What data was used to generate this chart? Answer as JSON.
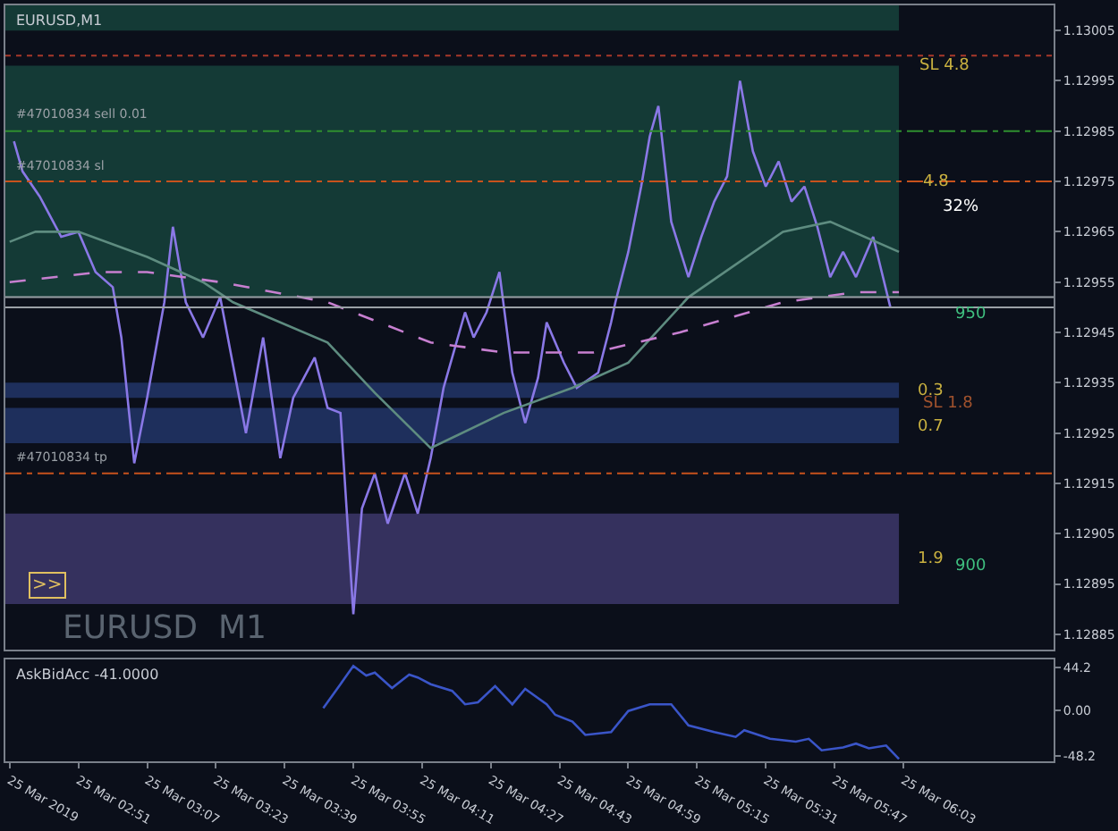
{
  "chart_data": [
    {
      "type": "line",
      "title": "EURUSD,M1",
      "xlim": [
        "2019-03-25T02:34",
        "2019-03-25T06:38"
      ],
      "ylim": [
        1.12882,
        1.1301
      ],
      "yticks": [
        1.12885,
        1.12895,
        1.12905,
        1.12915,
        1.12925,
        1.12935,
        1.12945,
        1.12955,
        1.12965,
        1.12975,
        1.12985,
        1.12995,
        1.13005
      ],
      "tick_labels": "y",
      "grid": false,
      "marker": "none",
      "series": [
        {
          "color": "#8a78e6",
          "line_style": "solid",
          "x": [
            "2019-03-25T02:36",
            "2019-03-25T02:38",
            "2019-03-25T02:42",
            "2019-03-25T02:47",
            "2019-03-25T02:51",
            "2019-03-25T02:53",
            "2019-03-25T02:55",
            "2019-03-25T02:59",
            "2019-03-25T03:01",
            "2019-03-25T03:04",
            "2019-03-25T03:07",
            "2019-03-25T03:11",
            "2019-03-25T03:13",
            "2019-03-25T03:16",
            "2019-03-25T03:20",
            "2019-03-25T03:24",
            "2019-03-25T03:28",
            "2019-03-25T03:30",
            "2019-03-25T03:34",
            "2019-03-25T03:38",
            "2019-03-25T03:41",
            "2019-03-25T03:46",
            "2019-03-25T03:49",
            "2019-03-25T03:52",
            "2019-03-25T03:55",
            "2019-03-25T03:57",
            "2019-03-25T04:00",
            "2019-03-25T04:03",
            "2019-03-25T04:07",
            "2019-03-25T04:10",
            "2019-03-25T04:13",
            "2019-03-25T04:16",
            "2019-03-25T04:18",
            "2019-03-25T04:21",
            "2019-03-25T04:23",
            "2019-03-25T04:26",
            "2019-03-25T04:29",
            "2019-03-25T04:32",
            "2019-03-25T04:35",
            "2019-03-25T04:38",
            "2019-03-25T04:40",
            "2019-03-25T04:44",
            "2019-03-25T04:47",
            "2019-03-25T04:52",
            "2019-03-25T04:55",
            "2019-03-25T04:56",
            "2019-03-25T04:59",
            "2019-03-25T05:02",
            "2019-03-25T05:04",
            "2019-03-25T05:06",
            "2019-03-25T05:09",
            "2019-03-25T05:13",
            "2019-03-25T05:16",
            "2019-03-25T05:19",
            "2019-03-25T05:22",
            "2019-03-25T05:25",
            "2019-03-25T05:28",
            "2019-03-25T05:31",
            "2019-03-25T05:34",
            "2019-03-25T05:37",
            "2019-03-25T05:40",
            "2019-03-25T05:43",
            "2019-03-25T05:46",
            "2019-03-25T05:49",
            "2019-03-25T05:52",
            "2019-03-25T05:56",
            "2019-03-25T05:58",
            "2019-03-25T06:00"
          ],
          "values": [
            1.12983,
            1.12977,
            1.12972,
            1.12964,
            1.12965,
            1.12961,
            1.12957,
            1.12954,
            1.12944,
            1.12919,
            1.12932,
            1.12951,
            1.12966,
            1.12951,
            1.12944,
            1.12952,
            1.12934,
            1.12925,
            1.12944,
            1.1292,
            1.12932,
            1.1294,
            1.1293,
            1.12929,
            1.12889,
            1.1291,
            1.12917,
            1.12907,
            1.12917,
            1.12909,
            1.1292,
            1.12934,
            1.1294,
            1.12949,
            1.12944,
            1.12949,
            1.12957,
            1.12937,
            1.12927,
            1.12936,
            1.12947,
            1.12939,
            1.12934,
            1.12937,
            1.12947,
            1.12951,
            1.12961,
            1.12974,
            1.12984,
            1.1299,
            1.12967,
            1.12956,
            1.12964,
            1.12971,
            1.12976,
            1.12995,
            1.12981,
            1.12974,
            1.12979,
            1.12971,
            1.12974,
            1.12966,
            1.12956,
            1.12961,
            1.12956,
            1.12964,
            1.12957,
            1.1295
          ]
        },
        {
          "color": "#5e8c80",
          "line_style": "solid",
          "x": [
            "2019-03-25T02:35",
            "2019-03-25T02:41",
            "2019-03-25T02:51",
            "2019-03-25T03:07",
            "2019-03-25T03:20",
            "2019-03-25T03:27",
            "2019-03-25T03:49",
            "2019-03-25T04:00",
            "2019-03-25T04:13",
            "2019-03-25T04:30",
            "2019-03-25T04:46",
            "2019-03-25T04:59",
            "2019-03-25T05:13",
            "2019-03-25T05:35",
            "2019-03-25T05:46",
            "2019-03-25T06:02"
          ],
          "values": [
            1.12963,
            1.12965,
            1.12965,
            1.1296,
            1.12955,
            1.12951,
            1.12943,
            1.12933,
            1.12922,
            1.12929,
            1.12934,
            1.12939,
            1.12952,
            1.12965,
            1.12967,
            1.12961
          ]
        },
        {
          "color": "#c77fd0",
          "line_style": "dashed",
          "x": [
            "2019-03-25T02:35",
            "2019-03-25T02:56",
            "2019-03-25T03:07",
            "2019-03-25T03:24",
            "2019-03-25T03:49",
            "2019-03-25T04:13",
            "2019-03-25T04:30",
            "2019-03-25T04:51",
            "2019-03-25T05:11",
            "2019-03-25T05:35",
            "2019-03-25T05:52",
            "2019-03-25T06:02"
          ],
          "values": [
            1.12955,
            1.12957,
            1.12957,
            1.12955,
            1.12951,
            1.12943,
            1.12941,
            1.12941,
            1.12945,
            1.12951,
            1.12953,
            1.12953
          ]
        }
      ],
      "ref_lines": [
        {
          "axis": "y",
          "value": 1.13,
          "label": null,
          "color": "#a8392a",
          "line_style": "dotted"
        },
        {
          "axis": "y",
          "value": 1.12985,
          "label": "#47010834 sell 0.01",
          "color": "#2f8f2f",
          "line_style": "dashdot"
        },
        {
          "axis": "y",
          "value": 1.12975,
          "label": "#47010834 sl",
          "color": "#c8521c",
          "line_style": "dashdot"
        },
        {
          "axis": "y",
          "value": 1.12917,
          "label": "#47010834 tp",
          "color": "#c8521c",
          "line_style": "dashdot"
        },
        {
          "axis": "y",
          "value": 1.12952,
          "label": null,
          "color": "#9aa0a6",
          "line_style": "solid"
        },
        {
          "axis": "y",
          "value": 1.1295,
          "label": null,
          "color": "#9aa0a6",
          "line_style": "solid"
        }
      ],
      "bands": [
        {
          "axis": "y",
          "from": 1.13005,
          "to": 1.1301,
          "label": null,
          "color": "#143a36"
        },
        {
          "axis": "y",
          "from": 1.12952,
          "to": 1.12998,
          "label": null,
          "color": "#143a36"
        },
        {
          "axis": "y",
          "from": 1.12932,
          "to": 1.12935,
          "label": null,
          "color": "#1e2f5c"
        },
        {
          "axis": "y",
          "from": 1.12923,
          "to": 1.1293,
          "label": null,
          "color": "#1e2f5c"
        },
        {
          "axis": "y",
          "from": 1.12891,
          "to": 1.12909,
          "label": null,
          "color": "#35315e"
        }
      ],
      "annotations": [
        "SL 4.8",
        "4.8",
        "32%",
        "950",
        "0.3",
        "SL 1.8",
        "0.7",
        "1.9",
        "900",
        "EURUSD  M1",
        ">>"
      ]
    },
    {
      "type": "line",
      "title": "AskBidAcc -41.0000",
      "xlim": [
        "2019-03-25T02:34",
        "2019-03-25T06:38"
      ],
      "ylim": [
        -53.5,
        53
      ],
      "xticks": [
        {
          "value": "2019-03-25T02:35",
          "label": "25 Mar 2019"
        },
        {
          "value": "2019-03-25T02:51",
          "label": "25 Mar 02:51"
        },
        {
          "value": "2019-03-25T03:07",
          "label": "25 Mar 03:07"
        },
        {
          "value": "2019-03-25T03:23",
          "label": "25 Mar 03:23"
        },
        {
          "value": "2019-03-25T03:39",
          "label": "25 Mar 03:39"
        },
        {
          "value": "2019-03-25T03:55",
          "label": "25 Mar 03:55"
        },
        {
          "value": "2019-03-25T04:11",
          "label": "25 Mar 04:11"
        },
        {
          "value": "2019-03-25T04:27",
          "label": "25 Mar 04:27"
        },
        {
          "value": "2019-03-25T04:43",
          "label": "25 Mar 04:43"
        },
        {
          "value": "2019-03-25T04:59",
          "label": "25 Mar 04:59"
        },
        {
          "value": "2019-03-25T05:15",
          "label": "25 Mar 05:15"
        },
        {
          "value": "2019-03-25T05:31",
          "label": "25 Mar 05:31"
        },
        {
          "value": "2019-03-25T05:47",
          "label": "25 Mar 05:47"
        },
        {
          "value": "2019-03-25T06:03",
          "label": "25 Mar 06:03"
        }
      ],
      "yticks": [
        44.2,
        {
          "value": 0,
          "label": "0.00"
        },
        -48.2
      ],
      "grid": false,
      "marker": "none",
      "series": [
        {
          "color": "#3a55c8",
          "line_style": "solid",
          "x": [
            "2019-03-25T03:48",
            "2019-03-25T03:52",
            "2019-03-25T03:55",
            "2019-03-25T03:58",
            "2019-03-25T04:00",
            "2019-03-25T04:04",
            "2019-03-25T04:08",
            "2019-03-25T04:10",
            "2019-03-25T04:13",
            "2019-03-25T04:18",
            "2019-03-25T04:21",
            "2019-03-25T04:24",
            "2019-03-25T04:28",
            "2019-03-25T04:32",
            "2019-03-25T04:35",
            "2019-03-25T04:40",
            "2019-03-25T04:42",
            "2019-03-25T04:46",
            "2019-03-25T04:49",
            "2019-03-25T04:55",
            "2019-03-25T04:59",
            "2019-03-25T05:04",
            "2019-03-25T05:09",
            "2019-03-25T05:13",
            "2019-03-25T05:19",
            "2019-03-25T05:24",
            "2019-03-25T05:26",
            "2019-03-25T05:32",
            "2019-03-25T05:38",
            "2019-03-25T05:41",
            "2019-03-25T05:44",
            "2019-03-25T05:49",
            "2019-03-25T05:52",
            "2019-03-25T05:55",
            "2019-03-25T05:59",
            "2019-03-25T06:02"
          ],
          "values": [
            2,
            27,
            46,
            36,
            39,
            23,
            37,
            34,
            27,
            20,
            6,
            8,
            25,
            6,
            22,
            6,
            -5,
            -12,
            -26,
            -23,
            -1,
            6,
            6,
            -16,
            -23,
            -28,
            -21,
            -30,
            -33,
            -30,
            -42,
            -39,
            -35,
            -40,
            -37,
            -51
          ]
        }
      ]
    }
  ]
}
